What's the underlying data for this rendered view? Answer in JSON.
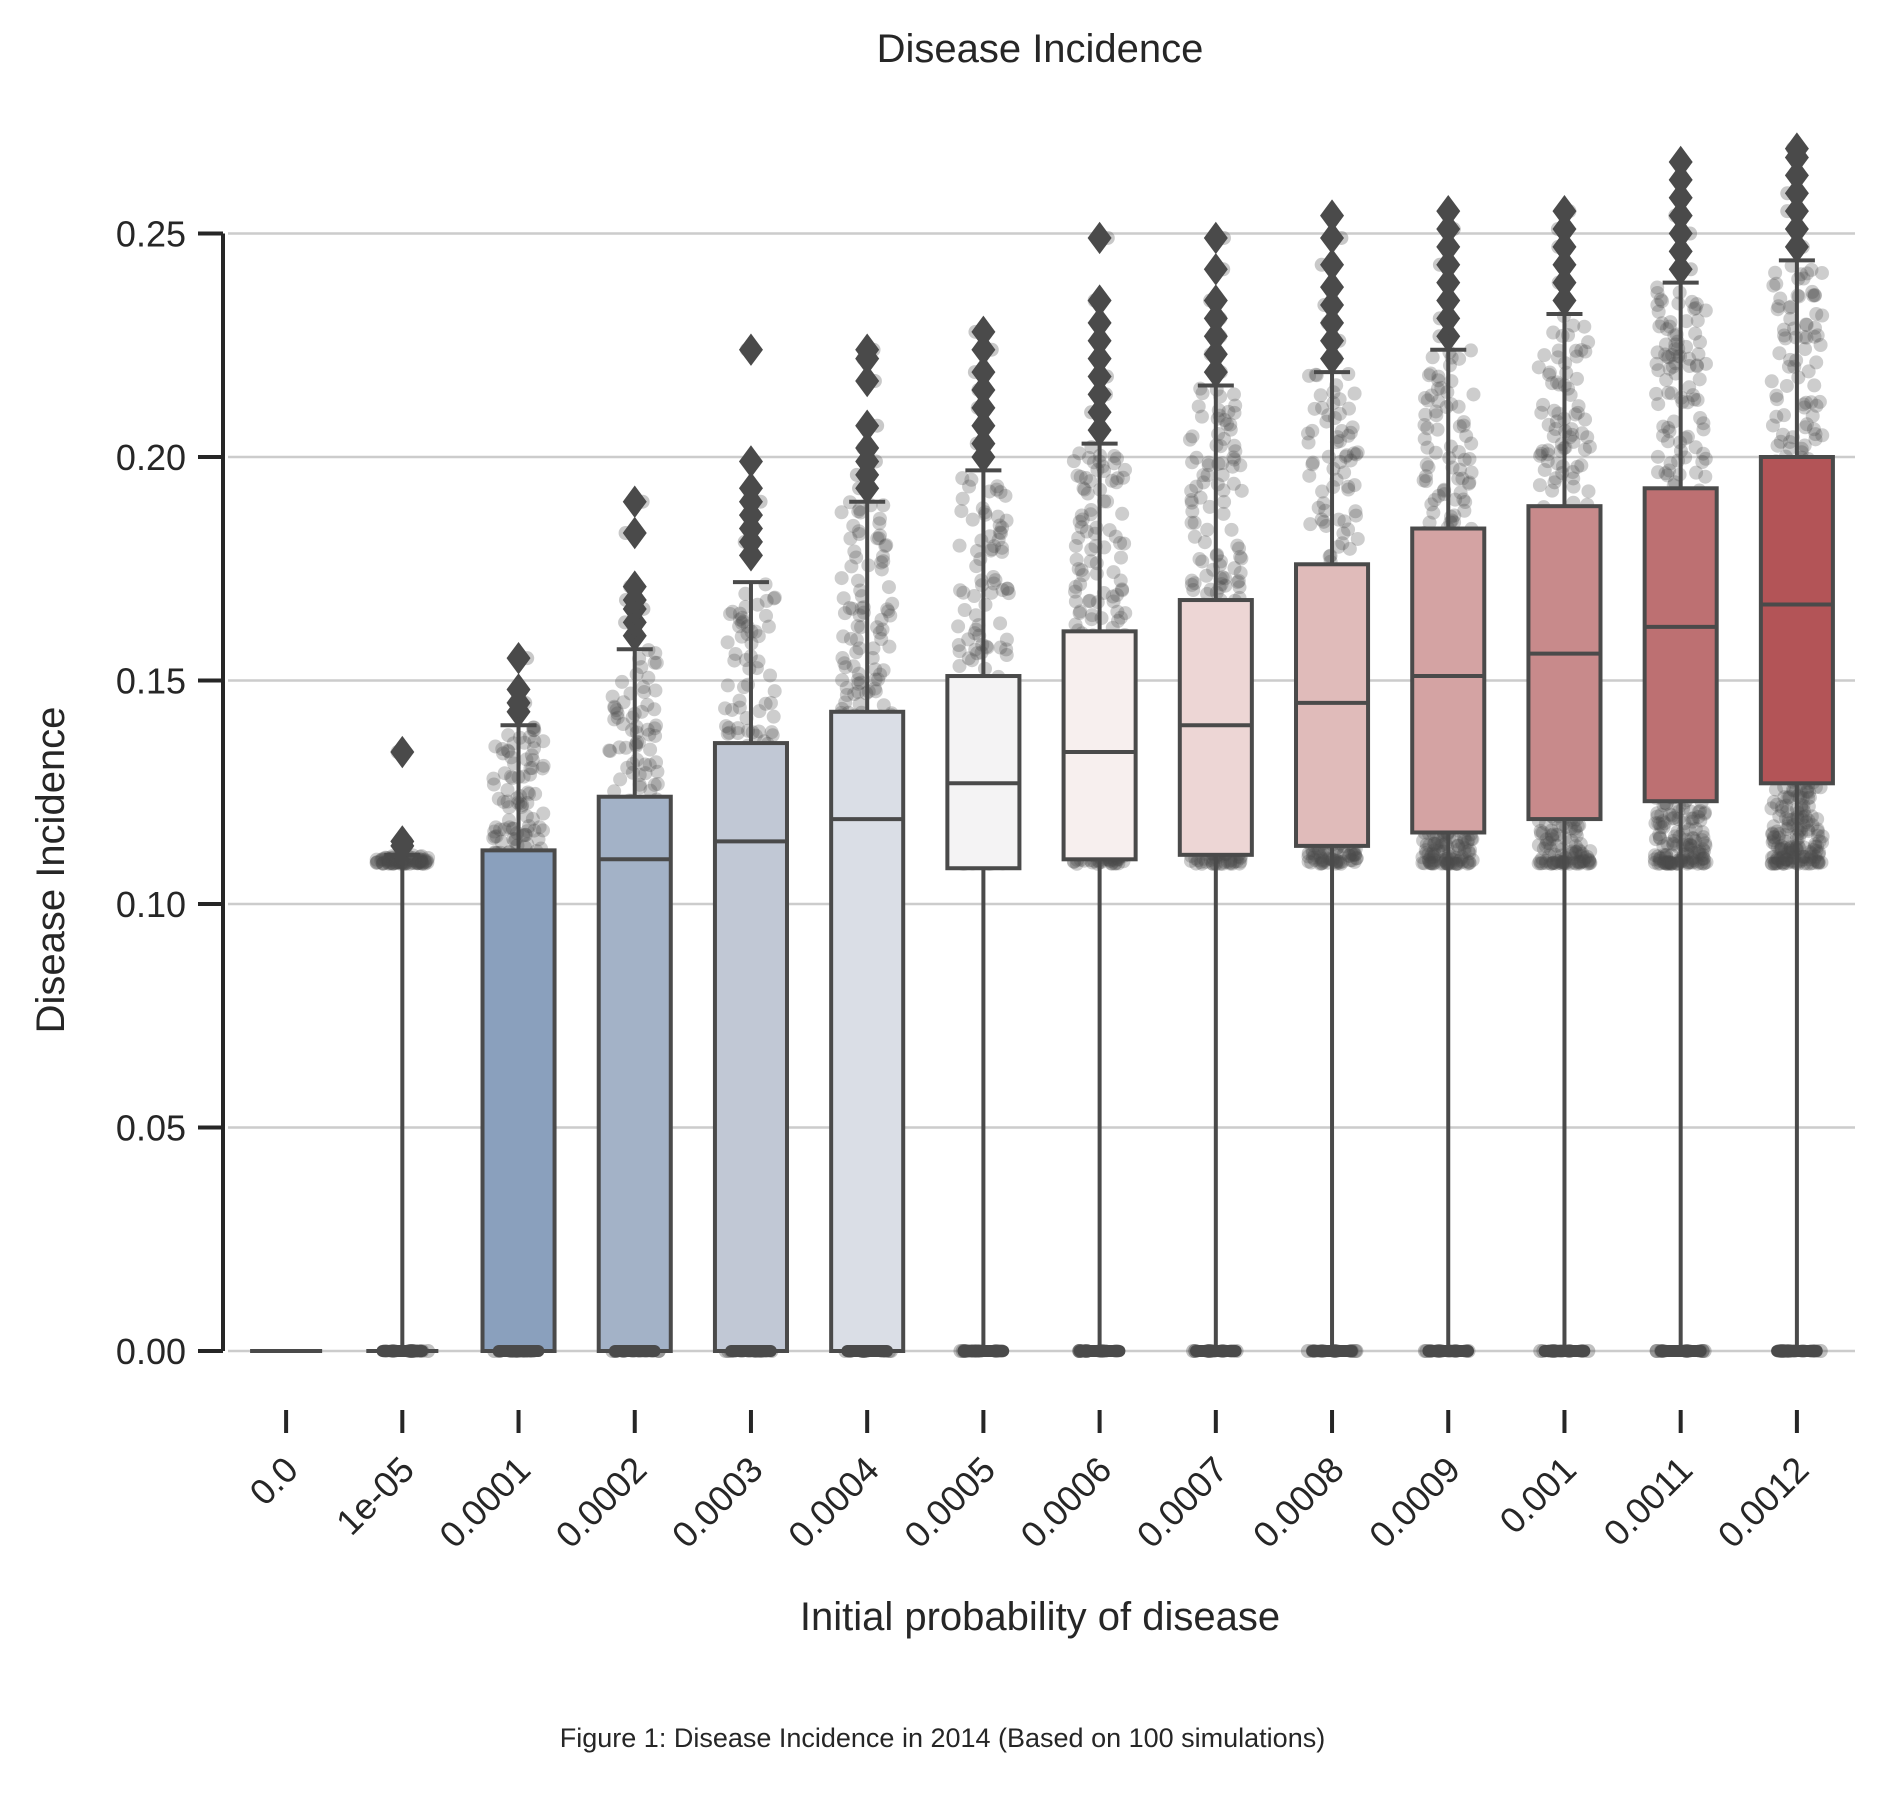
{
  "chart_data": {
    "type": "box",
    "title": "Disease Incidence",
    "xlabel": "Initial probability of disease",
    "ylabel": "Disease Incidence",
    "ylim": [
      -0.003,
      0.27
    ],
    "yticks": [
      "0.00",
      "0.05",
      "0.10",
      "0.15",
      "0.20",
      "0.25"
    ],
    "ytick_values": [
      0.0,
      0.05,
      0.1,
      0.15,
      0.2,
      0.25
    ],
    "grid": "horizontal",
    "palette": {
      "low": "#8aa0bd",
      "mid": "#f7f3f3",
      "high": "#b35457",
      "edge": "#4a4a4a",
      "grid": "#cccccc"
    },
    "categories": [
      "0.0",
      "1e-05",
      "0.0001",
      "0.0002",
      "0.0003",
      "0.0004",
      "0.0005",
      "0.0006",
      "0.0007",
      "0.0008",
      "0.0009",
      "0.001",
      "0.0011",
      "0.0012"
    ],
    "boxes": [
      {
        "q1": 0.0,
        "median": 0.0,
        "q3": 0.0,
        "whisker_low": 0.0,
        "whisker_high": 0.0,
        "fill": "#ffffff",
        "outliers": []
      },
      {
        "q1": 0.0,
        "median": 0.0,
        "q3": 0.0,
        "whisker_low": 0.0,
        "whisker_high": 0.111,
        "fill": "#ffffff",
        "outliers": [
          0.113,
          0.114,
          0.134
        ]
      },
      {
        "q1": 0.0,
        "median": 0.0,
        "q3": 0.112,
        "whisker_low": 0.0,
        "whisker_high": 0.14,
        "fill": "#8aa0bd",
        "outliers": [
          0.143,
          0.145,
          0.148,
          0.155
        ]
      },
      {
        "q1": 0.0,
        "median": 0.11,
        "q3": 0.124,
        "whisker_low": 0.0,
        "whisker_high": 0.157,
        "fill": "#a3b2c7",
        "outliers": [
          0.16,
          0.163,
          0.166,
          0.168,
          0.171,
          0.183,
          0.19
        ]
      },
      {
        "q1": 0.0,
        "median": 0.114,
        "q3": 0.136,
        "whisker_low": 0.0,
        "whisker_high": 0.172,
        "fill": "#c1c8d5",
        "outliers": [
          0.178,
          0.181,
          0.184,
          0.187,
          0.19,
          0.193,
          0.199,
          0.224
        ]
      },
      {
        "q1": 0.0,
        "median": 0.119,
        "q3": 0.143,
        "whisker_low": 0.0,
        "whisker_high": 0.19,
        "fill": "#dadee6",
        "outliers": [
          0.193,
          0.196,
          0.199,
          0.202,
          0.207,
          0.217,
          0.222,
          0.224
        ]
      },
      {
        "q1": 0.108,
        "median": 0.127,
        "q3": 0.151,
        "whisker_low": 0.0,
        "whisker_high": 0.197,
        "fill": "#f4f3f4",
        "outliers": [
          0.2,
          0.203,
          0.207,
          0.211,
          0.215,
          0.219,
          0.224,
          0.228
        ]
      },
      {
        "q1": 0.11,
        "median": 0.134,
        "q3": 0.161,
        "whisker_low": 0.0,
        "whisker_high": 0.203,
        "fill": "#f7efee",
        "outliers": [
          0.206,
          0.21,
          0.214,
          0.218,
          0.222,
          0.226,
          0.23,
          0.235,
          0.249
        ]
      },
      {
        "q1": 0.111,
        "median": 0.14,
        "q3": 0.168,
        "whisker_low": 0.0,
        "whisker_high": 0.216,
        "fill": "#edd6d5",
        "outliers": [
          0.219,
          0.223,
          0.227,
          0.231,
          0.235,
          0.242,
          0.249
        ]
      },
      {
        "q1": 0.113,
        "median": 0.145,
        "q3": 0.176,
        "whisker_low": 0.0,
        "whisker_high": 0.219,
        "fill": "#e0bbba",
        "outliers": [
          0.222,
          0.226,
          0.23,
          0.234,
          0.238,
          0.243,
          0.249,
          0.254
        ]
      },
      {
        "q1": 0.116,
        "median": 0.151,
        "q3": 0.184,
        "whisker_low": 0.0,
        "whisker_high": 0.224,
        "fill": "#d4a3a3",
        "outliers": [
          0.227,
          0.231,
          0.235,
          0.239,
          0.243,
          0.247,
          0.251,
          0.255
        ]
      },
      {
        "q1": 0.119,
        "median": 0.156,
        "q3": 0.189,
        "whisker_low": 0.0,
        "whisker_high": 0.232,
        "fill": "#c88a8b",
        "outliers": [
          0.235,
          0.239,
          0.243,
          0.247,
          0.251,
          0.255
        ]
      },
      {
        "q1": 0.123,
        "median": 0.162,
        "q3": 0.193,
        "whisker_low": 0.0,
        "whisker_high": 0.239,
        "fill": "#bd7072",
        "outliers": [
          0.242,
          0.246,
          0.25,
          0.254,
          0.258,
          0.262,
          0.266
        ]
      },
      {
        "q1": 0.127,
        "median": 0.167,
        "q3": 0.2,
        "whisker_low": 0.0,
        "whisker_high": 0.244,
        "fill": "#b35457",
        "outliers": [
          0.247,
          0.251,
          0.255,
          0.259,
          0.263,
          0.267,
          0.269
        ]
      }
    ]
  },
  "caption": "Figure 1: Disease Incidence in 2014 (Based on 100 simulations)"
}
